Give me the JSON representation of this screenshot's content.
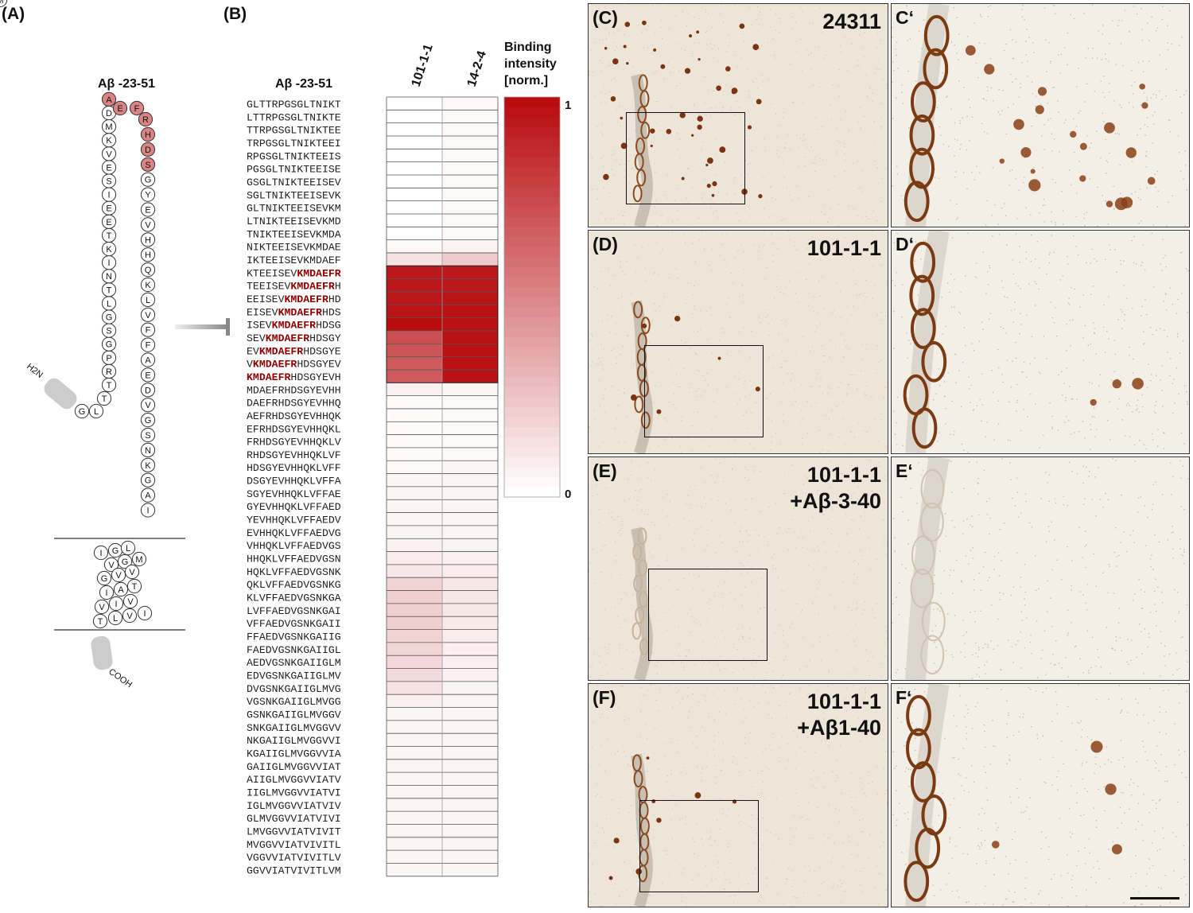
{
  "panels": {
    "a": {
      "label": "(A)",
      "title": "Aβ -23-51",
      "n_term": "H2N",
      "c_term": "COOH",
      "residues": [
        "G",
        "L",
        "T",
        "T",
        "R",
        "P",
        "G",
        "S",
        "G",
        "L",
        "T",
        "N",
        "I",
        "K",
        "T",
        "E",
        "E",
        "I",
        "S",
        "E",
        "V",
        "K",
        "M",
        "D",
        "A",
        "E",
        "F",
        "R",
        "H",
        "D",
        "S",
        "G",
        "Y",
        "E",
        "V",
        "H",
        "H",
        "Q",
        "K",
        "L",
        "V",
        "F",
        "F",
        "A",
        "E",
        "D",
        "V",
        "G",
        "S",
        "N",
        "K",
        "G",
        "A",
        "I",
        "I",
        "G",
        "L",
        "M",
        "V",
        "G",
        "G",
        "V",
        "V",
        "I",
        "A",
        "T",
        "V",
        "I",
        "V",
        "I",
        "T",
        "L",
        "V",
        "M"
      ],
      "highlighted_residues": [
        "K",
        "M",
        "D",
        "A",
        "E",
        "F",
        "R"
      ],
      "highlight_color": "#d98585"
    },
    "b": {
      "label": "(B)",
      "row_header": "Aβ -23-51",
      "columns": [
        "101-1-1",
        "14-2-4"
      ],
      "legend_title": "Binding intensity [norm.]",
      "legend_title_lines": [
        "Binding",
        "intensity",
        "[norm.]"
      ],
      "legend_max": "1",
      "legend_min": "0",
      "epitope": "KMDAEFR",
      "epitope_color": "#8b0000",
      "heat_color": "#b80c10"
    },
    "c": {
      "label": "(C)",
      "title_lines": [
        "24311"
      ],
      "zoom_label": "C‘"
    },
    "d": {
      "label": "(D)",
      "title_lines": [
        "101-1-1"
      ],
      "zoom_label": "D‘"
    },
    "e": {
      "label": "(E)",
      "title_lines": [
        "101-1-1",
        "+Aβ-3-40"
      ],
      "zoom_label": "E‘"
    },
    "f": {
      "label": "(F)",
      "title_lines": [
        "101-1-1",
        "+Aβ1-40"
      ],
      "zoom_label": "F‘"
    }
  },
  "chart_data": {
    "type": "heatmap",
    "title": "",
    "xlabel": "",
    "ylabel": "Aβ -23-51",
    "x": [
      "101-1-1",
      "14-2-4"
    ],
    "colorbar": {
      "label": "Binding intensity [norm.]",
      "range": [
        0,
        1
      ]
    },
    "rows": [
      {
        "peptide": "GLTTRPGSGLTNIKT",
        "values": [
          0.0,
          0.03
        ]
      },
      {
        "peptide": "LTTRPGSGLTNIKTE",
        "values": [
          0.0,
          0.03
        ]
      },
      {
        "peptide": "TTRPGSGLTNIKTEE",
        "values": [
          0.0,
          0.03
        ]
      },
      {
        "peptide": "TRPGSGLTNIKTEEI",
        "values": [
          0.0,
          0.03
        ]
      },
      {
        "peptide": "RPGSGLTNIKTEEIS",
        "values": [
          0.0,
          0.03
        ]
      },
      {
        "peptide": "PGSGLTNIKTEEISE",
        "values": [
          0.0,
          0.03
        ]
      },
      {
        "peptide": "GSGLTNIKTEEISEV",
        "values": [
          0.0,
          0.03
        ]
      },
      {
        "peptide": "SGLTNIKTEEISEVK",
        "values": [
          0.0,
          0.03
        ]
      },
      {
        "peptide": "GLTNIKTEEISEVKM",
        "values": [
          0.0,
          0.03
        ]
      },
      {
        "peptide": "LTNIKTEEISEVKMD",
        "values": [
          0.0,
          0.03
        ]
      },
      {
        "peptide": "TNIKTEEISEVKMDA",
        "values": [
          0.0,
          0.03
        ]
      },
      {
        "peptide": "NIKTEEISEVKMDAE",
        "values": [
          0.03,
          0.05
        ]
      },
      {
        "peptide": "IKTEEISEVKMDAEF",
        "values": [
          0.12,
          0.22
        ]
      },
      {
        "peptide": "KTEEISEVKMDAEFR",
        "values": [
          0.95,
          0.95
        ]
      },
      {
        "peptide": "TEEISEVKMDAEFRH",
        "values": [
          0.96,
          0.96
        ]
      },
      {
        "peptide": "EEISEVKMDAEFRHD",
        "values": [
          0.96,
          0.97
        ]
      },
      {
        "peptide": "EISEVKMDAEFRHDS",
        "values": [
          0.97,
          0.98
        ]
      },
      {
        "peptide": "ISEVKMDAEFRHDSG",
        "values": [
          1.0,
          0.98
        ]
      },
      {
        "peptide": "SEVKMDAEFRHDSGY",
        "values": [
          0.72,
          0.98
        ]
      },
      {
        "peptide": "EVKMDAEFRHDSGYE",
        "values": [
          0.7,
          0.98
        ]
      },
      {
        "peptide": "VKMDAEFRHDSGYEV",
        "values": [
          0.68,
          0.98
        ]
      },
      {
        "peptide": "KMDAEFRHDSGYEVH",
        "values": [
          0.68,
          0.98
        ]
      },
      {
        "peptide": "MDAEFRHDSGYEVHH",
        "values": [
          0.06,
          0.04
        ]
      },
      {
        "peptide": "DAEFRHDSGYEVHHQ",
        "values": [
          0.02,
          0.03
        ]
      },
      {
        "peptide": "AEFRHDSGYEVHHQK",
        "values": [
          0.02,
          0.03
        ]
      },
      {
        "peptide": "EFRHDSGYEVHHQKL",
        "values": [
          0.02,
          0.03
        ]
      },
      {
        "peptide": "FRHDSGYEVHHQKLV",
        "values": [
          0.02,
          0.03
        ]
      },
      {
        "peptide": "RHDSGYEVHHQKLVF",
        "values": [
          0.02,
          0.03
        ]
      },
      {
        "peptide": "HDSGYEVHHQKLVFF",
        "values": [
          0.03,
          0.04
        ]
      },
      {
        "peptide": "DSGYEVHHQKLVFFA",
        "values": [
          0.04,
          0.04
        ]
      },
      {
        "peptide": "SGYEVHHQKLVFFAE",
        "values": [
          0.04,
          0.04
        ]
      },
      {
        "peptide": "GYEVHHQKLVFFAED",
        "values": [
          0.04,
          0.04
        ]
      },
      {
        "peptide": "YEVHHQKLVFFAEDV",
        "values": [
          0.04,
          0.04
        ]
      },
      {
        "peptide": "EVHHQKLVFFAEDVG",
        "values": [
          0.05,
          0.04
        ]
      },
      {
        "peptide": "VHHQKLVFFAEDVGS",
        "values": [
          0.06,
          0.05
        ]
      },
      {
        "peptide": "HHQKLVFFAEDVGSN",
        "values": [
          0.08,
          0.06
        ]
      },
      {
        "peptide": "HQKLVFFAEDVGSNK",
        "values": [
          0.1,
          0.08
        ]
      },
      {
        "peptide": "QKLVFFAEDVGSNKG",
        "values": [
          0.18,
          0.1
        ]
      },
      {
        "peptide": "KLVFFAEDVGSNKGA",
        "values": [
          0.2,
          0.1
        ]
      },
      {
        "peptide": "LVFFAEDVGSNKGAI",
        "values": [
          0.2,
          0.1
        ]
      },
      {
        "peptide": "VFFAEDVGSNKGAII",
        "values": [
          0.2,
          0.09
        ]
      },
      {
        "peptide": "FFAEDVGSNKGAIIG",
        "values": [
          0.18,
          0.08
        ]
      },
      {
        "peptide": "FAEDVGSNKGAIIGL",
        "values": [
          0.17,
          0.07
        ]
      },
      {
        "peptide": "AEDVGSNKGAIIGLM",
        "values": [
          0.16,
          0.06
        ]
      },
      {
        "peptide": "EDVGSNKGAIIGLMV",
        "values": [
          0.15,
          0.06
        ]
      },
      {
        "peptide": "DVGSNKGAIIGLMVG",
        "values": [
          0.12,
          0.05
        ]
      },
      {
        "peptide": "VGSNKGAIIGLMVGG",
        "values": [
          0.06,
          0.04
        ]
      },
      {
        "peptide": "GSNKGAIIGLMVGGV",
        "values": [
          0.04,
          0.04
        ]
      },
      {
        "peptide": "SNKGAIIGLMVGGVV",
        "values": [
          0.04,
          0.04
        ]
      },
      {
        "peptide": "NKGAIIGLMVGGVVI",
        "values": [
          0.04,
          0.04
        ]
      },
      {
        "peptide": "KGAIIGLMVGGVVIA",
        "values": [
          0.04,
          0.04
        ]
      },
      {
        "peptide": "GAIIGLMVGGVVIAT",
        "values": [
          0.04,
          0.04
        ]
      },
      {
        "peptide": "AIIGLMVGGVVIATV",
        "values": [
          0.04,
          0.04
        ]
      },
      {
        "peptide": "IIGLMVGGVVIATVI",
        "values": [
          0.04,
          0.04
        ]
      },
      {
        "peptide": "IGLMVGGVVIATVIV",
        "values": [
          0.04,
          0.04
        ]
      },
      {
        "peptide": "GLMVGGVVIATVIVI",
        "values": [
          0.04,
          0.04
        ]
      },
      {
        "peptide": "LMVGGVVIATVIVIT",
        "values": [
          0.04,
          0.04
        ]
      },
      {
        "peptide": "MVGGVVIATVIVITL",
        "values": [
          0.04,
          0.04
        ]
      },
      {
        "peptide": "VGGVVIATVIVITLV",
        "values": [
          0.04,
          0.04
        ]
      },
      {
        "peptide": "GGVVIATVIVITLVM",
        "values": [
          0.04,
          0.04
        ]
      }
    ]
  }
}
